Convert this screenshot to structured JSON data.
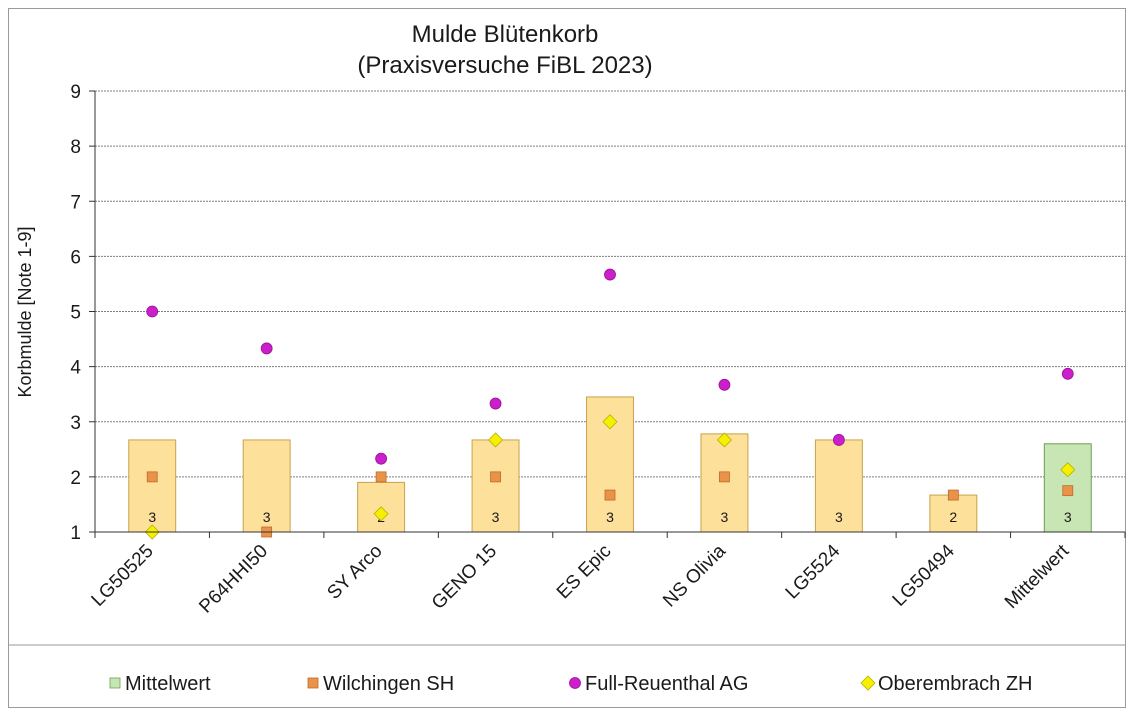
{
  "chart_data": {
    "type": "bar",
    "title": "Mulde Blütenkorb",
    "subtitle": "(Praxisversuche FiBL 2023)",
    "ylabel": "Korbmulde [Note 1-9]",
    "xlabel": "",
    "ylim": [
      1,
      9
    ],
    "yticks": [
      "1",
      "2",
      "3",
      "4",
      "5",
      "6",
      "7",
      "8",
      "9"
    ],
    "grid": true,
    "legend_position": "bottom",
    "categories": [
      "LG50525",
      "P64HHI50",
      "SY Arco",
      "GENO 15",
      "ES Epic",
      "NS Olivia",
      "LG5524",
      "LG50494",
      "Mittelwert"
    ],
    "bar_values": [
      2.67,
      2.67,
      1.9,
      2.67,
      3.45,
      2.78,
      2.67,
      1.67,
      2.6
    ],
    "bar_counts": [
      "3",
      "3",
      "2",
      "3",
      "3",
      "3",
      "3",
      "2",
      "3"
    ],
    "bar_color": "#fde09a",
    "bar_border": "#c8a24a",
    "mean_bar_color": "#c8e6b4",
    "mean_bar_border": "#6aa050",
    "series": [
      {
        "name": "Wilchingen SH",
        "marker": "square",
        "color": "#e8924a",
        "values": [
          2.0,
          1.0,
          2.0,
          2.0,
          1.67,
          2.0,
          null,
          1.67,
          1.75
        ]
      },
      {
        "name": "Full-Reuenthal AG",
        "marker": "circle",
        "color": "#cc1fcc",
        "values": [
          5.0,
          4.33,
          2.33,
          3.33,
          5.67,
          3.67,
          2.67,
          null,
          3.87
        ]
      },
      {
        "name": "Oberembrach ZH",
        "marker": "diamond",
        "color": "#f4f000",
        "values": [
          1.0,
          null,
          1.33,
          2.67,
          3.0,
          2.67,
          null,
          null,
          2.13
        ]
      }
    ],
    "legend": [
      {
        "label": "Mittelwert",
        "marker": "rect",
        "color": "#c8e6b4"
      },
      {
        "label": "Wilchingen SH",
        "marker": "square",
        "color": "#e8924a"
      },
      {
        "label": "Full-Reuenthal AG",
        "marker": "circle",
        "color": "#cc1fcc"
      },
      {
        "label": "Oberembrach ZH",
        "marker": "diamond",
        "color": "#f4f000"
      }
    ]
  }
}
